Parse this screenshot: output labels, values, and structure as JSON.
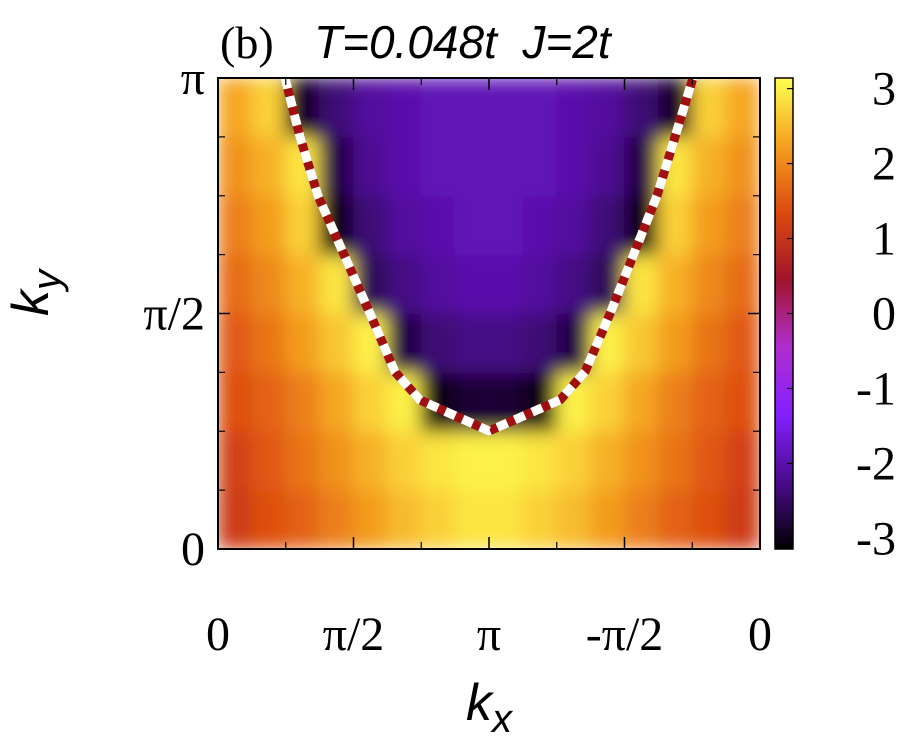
{
  "chart_data": {
    "type": "heatmap",
    "panel_label": "(b)",
    "title": "T=0.048t  J=2t",
    "xlabel": "k",
    "xlabel_sub": "x",
    "ylabel": "k",
    "ylabel_sub": "y",
    "xlim": [
      0,
      6.2832
    ],
    "ylim": [
      0,
      3.1416
    ],
    "xticks": [
      0,
      {
        "value": 1.5708,
        "label": "π/2"
      },
      {
        "value": 3.1416,
        "label": "π"
      },
      {
        "value": 4.7124,
        "label": "-π/2"
      },
      {
        "value": 6.2832,
        "label": "0"
      }
    ],
    "xminorticks": [
      0.7854,
      2.3562,
      3.927,
      5.4978
    ],
    "yticks": [
      0,
      {
        "value": 1.5708,
        "label": "π/2"
      },
      {
        "value": 3.1416,
        "label": "π"
      }
    ],
    "yminorticks": [
      0.3927,
      0.7854,
      1.1781,
      1.9635,
      2.3562,
      2.7489
    ],
    "x": [
      0.1963,
      0.589,
      0.9817,
      1.3744,
      1.7671,
      2.1598,
      2.5525,
      2.9452,
      3.3379,
      3.7306,
      4.1233,
      4.516,
      4.9087,
      5.3014,
      5.6941,
      6.0868
    ],
    "y": [
      0.1963,
      0.589,
      0.9817,
      1.3744,
      1.7671,
      2.1598,
      2.5525,
      2.9452
    ],
    "z": [
      [
        1.1,
        1.4,
        1.6,
        1.9,
        2.2,
        2.5,
        2.7,
        2.9,
        2.9,
        2.7,
        2.5,
        2.2,
        1.9,
        1.6,
        1.4,
        1.1
      ],
      [
        1.2,
        1.5,
        1.8,
        2.1,
        2.4,
        2.7,
        2.9,
        3.0,
        3.0,
        2.9,
        2.7,
        2.4,
        2.1,
        1.8,
        1.5,
        1.2
      ],
      [
        1.4,
        1.6,
        1.9,
        2.3,
        2.7,
        3.0,
        -3.0,
        -2.8,
        -2.8,
        -3.0,
        3.0,
        2.7,
        2.3,
        1.9,
        1.6,
        1.4
      ],
      [
        1.5,
        1.8,
        2.2,
        2.6,
        3.0,
        -2.7,
        -2.4,
        -2.3,
        -2.3,
        -2.4,
        -2.7,
        3.0,
        2.6,
        2.2,
        1.8,
        1.5
      ],
      [
        1.7,
        2.0,
        2.4,
        2.9,
        -2.6,
        -2.3,
        -2.1,
        -2.0,
        -2.0,
        -2.1,
        -2.3,
        -2.6,
        2.9,
        2.4,
        2.0,
        1.7
      ],
      [
        1.9,
        2.2,
        2.7,
        -3.0,
        -2.4,
        -2.1,
        -2.0,
        -1.9,
        -1.9,
        -2.0,
        -2.1,
        -2.4,
        -3.0,
        2.7,
        2.2,
        1.9
      ],
      [
        2.1,
        2.4,
        2.9,
        -2.7,
        -2.2,
        -2.0,
        -1.9,
        -1.9,
        -1.9,
        -1.9,
        -2.0,
        -2.2,
        -2.7,
        2.9,
        2.4,
        2.1
      ],
      [
        2.3,
        2.7,
        -2.9,
        -2.4,
        -2.1,
        -2.0,
        -1.9,
        -1.9,
        -1.9,
        -1.9,
        -2.0,
        -2.1,
        -2.4,
        -2.9,
        2.7,
        2.3
      ]
    ],
    "zlim": [
      -3.1416,
      3.1416
    ],
    "zticks": [
      -3,
      -2,
      -1,
      0,
      1,
      2,
      3
    ],
    "colormap": [
      "#000000",
      "#4a0c8c",
      "#8420ff",
      "#b02ed0",
      "#a0142c",
      "#dc4a10",
      "#f4a020",
      "#ffff50"
    ],
    "boundary": {
      "x": [
        0.777,
        0.951,
        1.159,
        1.762,
        2.052,
        2.342,
        3.142,
        3.965,
        4.255,
        4.545,
        5.089,
        5.298,
        5.506
      ],
      "y": [
        3.142,
        2.749,
        2.356,
        1.571,
        1.181,
        0.994,
        0.787,
        0.994,
        1.181,
        1.571,
        2.356,
        2.749,
        3.142
      ]
    }
  }
}
